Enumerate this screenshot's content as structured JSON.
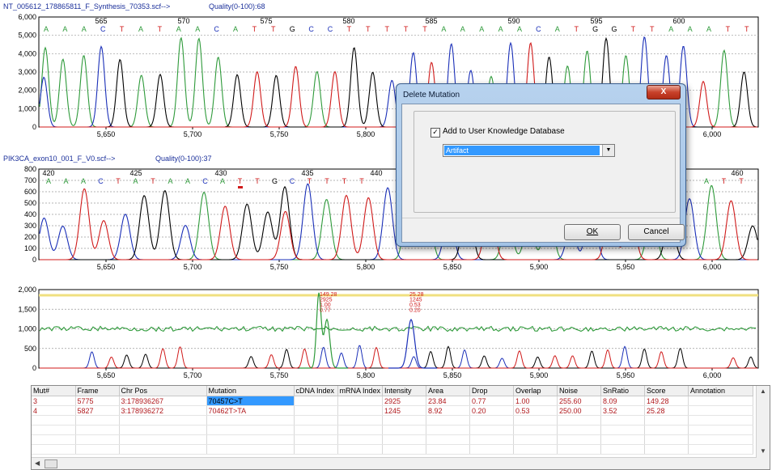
{
  "trace1": {
    "filename": "NT_005612_178865811_F_Synthesis_70353.scf-->",
    "quality": "Quality(0-100):68",
    "base_positions": [
      "565",
      "570",
      "575",
      "580",
      "585",
      "590",
      "595",
      "600"
    ],
    "bases": "AAACTATAACATTGCCTTTTTAAAAACATGGTTAAATT",
    "y_ticks": [
      "6,000",
      "5,000",
      "4,000",
      "3,000",
      "2,000",
      "1,000",
      "0"
    ],
    "x_ticks": [
      "5,650",
      "5,700",
      "5,750",
      "5,800",
      "5,850",
      "5,900",
      "5,950",
      "6,000"
    ]
  },
  "trace2": {
    "filename": "PIK3CA_exon10_001_F_V0.scf-->",
    "quality": "Quality(0-100):37",
    "base_positions": [
      "420",
      "425",
      "430",
      "435",
      "440",
      "460"
    ],
    "bases_left": "AAACTATAACATTGCTTTT",
    "bases_right": "ATT",
    "y_ticks": [
      "800",
      "700",
      "600",
      "500",
      "400",
      "300",
      "200",
      "100",
      "0"
    ],
    "x_ticks": [
      "5,650",
      "5,700",
      "5,750",
      "5,800",
      "5,850",
      "5,900",
      "5,950",
      "6,000"
    ]
  },
  "trace3": {
    "y_ticks": [
      "2,000",
      "1,500",
      "1,000",
      "500",
      "0"
    ],
    "x_ticks": [
      "5,650",
      "5,700",
      "5,750",
      "5,800",
      "5,850",
      "5,900",
      "5,950",
      "6,000"
    ],
    "annotation1": [
      "149.28",
      "2925",
      "1.00",
      "0.77"
    ],
    "annotation2": [
      "25.28",
      "1245",
      "0.53",
      "0.20"
    ]
  },
  "table": {
    "headers": [
      "Mut#",
      "Frame",
      "Chr Pos",
      "Mutation",
      "cDNA Index",
      "mRNA Index",
      "Intensity",
      "Area",
      "Drop",
      "Overlap",
      "Noise",
      "SnRatio",
      "Score",
      "Annotation"
    ],
    "rows": [
      [
        "3",
        "5775",
        "3:178936267",
        "70457C>T",
        "",
        "",
        "2925",
        "23.84",
        "0.77",
        "1.00",
        "255.60",
        "8.09",
        "149.28",
        ""
      ],
      [
        "4",
        "5827",
        "3:178936272",
        "70462T>TA",
        "",
        "",
        "1245",
        "8.92",
        "0.20",
        "0.53",
        "250.00",
        "3.52",
        "25.28",
        ""
      ]
    ]
  },
  "dialog": {
    "title": "Delete Mutation",
    "close": "X",
    "checkbox_label": "Add to User Knowledge Database",
    "checkbox_checked": true,
    "dropdown_value": "Artifact",
    "ok_label": "OK",
    "cancel_label": "Cancel"
  },
  "colors": {
    "A": "#2e9a3a",
    "C": "#1a2fb8",
    "G": "#000000",
    "T": "#d01a1a",
    "header": "#1a2f9a",
    "highlight": "#3399ff"
  }
}
